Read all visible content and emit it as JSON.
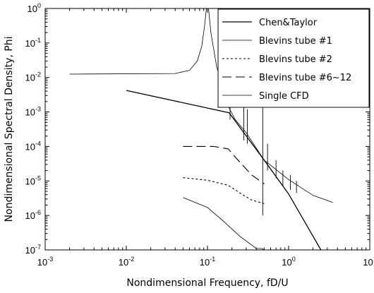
{
  "chart_data": {
    "type": "line",
    "xlabel": "Nondimensional Frequency,  fD/U",
    "ylabel": "Nondimensional Spectral Density, Phi",
    "xscale": "log",
    "yscale": "log",
    "xlim": [
      0.001,
      10
    ],
    "ylim": [
      1e-07,
      1
    ],
    "grid": false,
    "legend_position": "top-right",
    "x_ticks": [
      {
        "base": "10",
        "exp": "-3"
      },
      {
        "base": "10",
        "exp": "-2"
      },
      {
        "base": "10",
        "exp": "-1"
      },
      {
        "base": "10",
        "exp": "0"
      },
      {
        "base": "10",
        "exp": "1"
      }
    ],
    "y_ticks": [
      {
        "base": "10",
        "exp": "-7"
      },
      {
        "base": "10",
        "exp": "-6"
      },
      {
        "base": "10",
        "exp": "-5"
      },
      {
        "base": "10",
        "exp": "-4"
      },
      {
        "base": "10",
        "exp": "-3"
      },
      {
        "base": "10",
        "exp": "-2"
      },
      {
        "base": "10",
        "exp": "-1"
      },
      {
        "base": "10",
        "exp": "0"
      }
    ],
    "series": [
      {
        "name": "Chen&Taylor",
        "style": "solid",
        "color": "#000000",
        "width": 1.3,
        "points": [
          [
            0.01,
            0.0042
          ],
          [
            0.185,
            0.00095
          ],
          [
            0.5,
            4e-05
          ],
          [
            1.0,
            4.2e-06
          ],
          [
            2.5,
            1e-07
          ]
        ]
      },
      {
        "name": "Blevins tube #1",
        "style": "solid",
        "color": "#000000",
        "width": 0.8,
        "points": [
          [
            0.002,
            0.0125
          ],
          [
            0.04,
            0.013
          ],
          [
            0.06,
            0.016
          ],
          [
            0.075,
            0.03
          ],
          [
            0.085,
            0.08
          ],
          [
            0.092,
            0.3
          ],
          [
            0.097,
            1.0
          ]
        ]
      },
      {
        "name": "Blevins tube #1",
        "style": "solid",
        "color": "#000000",
        "width": 0.8,
        "points": [
          [
            0.103,
            1.0
          ],
          [
            0.11,
            0.2
          ],
          [
            0.13,
            0.02
          ],
          [
            0.16,
            0.0045
          ],
          [
            0.185,
            0.0013
          ],
          [
            0.22,
            0.0006
          ],
          [
            0.3,
            0.00025
          ],
          [
            0.5,
            4e-05
          ],
          [
            1.0,
            1.1e-05
          ],
          [
            2.0,
            3.8e-06
          ],
          [
            3.5,
            2.4e-06
          ]
        ]
      },
      {
        "name": "Blevins tube #2",
        "style": "dotted",
        "color": "#000000",
        "width": 1.1,
        "points": [
          [
            0.05,
            1.25e-05
          ],
          [
            0.1,
            1.05e-05
          ],
          [
            0.18,
            7.5e-06
          ],
          [
            0.25,
            4.5e-06
          ],
          [
            0.35,
            2.8e-06
          ],
          [
            0.5,
            2.2e-06
          ]
        ]
      },
      {
        "name": "Blevins tube #6~12",
        "style": "dashed",
        "color": "#000000",
        "width": 1.1,
        "points": [
          [
            0.05,
            0.0001
          ],
          [
            0.12,
            0.0001
          ],
          [
            0.18,
            8.5e-05
          ],
          [
            0.25,
            3.5e-05
          ],
          [
            0.35,
            1.5e-05
          ],
          [
            0.5,
            8.2e-06
          ]
        ]
      },
      {
        "name": "Single CFD",
        "style": "solid",
        "color": "#000000",
        "width": 0.8,
        "points": [
          [
            0.05,
            3.3e-06
          ],
          [
            0.1,
            1.7e-06
          ],
          [
            0.15,
            7.5e-07
          ],
          [
            0.25,
            2.5e-07
          ],
          [
            0.4,
            1.1e-07
          ],
          [
            0.47,
            1.1e-07
          ],
          [
            0.5,
            1e-07
          ]
        ]
      }
    ],
    "spikes": [
      {
        "x": 0.19,
        "y1": 0.0006,
        "y2": 0.002
      },
      {
        "x": 0.28,
        "y1": 0.00015,
        "y2": 0.0035
      },
      {
        "x": 0.31,
        "y1": 0.00012,
        "y2": 0.0012
      },
      {
        "x": 0.48,
        "y1": 1e-06,
        "y2": 0.002
      },
      {
        "x": 0.55,
        "y1": 2e-05,
        "y2": 0.00012
      },
      {
        "x": 0.7,
        "y1": 1.2e-05,
        "y2": 4e-05
      },
      {
        "x": 0.85,
        "y1": 7e-06,
        "y2": 2e-05
      },
      {
        "x": 1.05,
        "y1": 5.5e-06,
        "y2": 1.5e-05
      },
      {
        "x": 1.25,
        "y1": 4.5e-06,
        "y2": 1e-05
      }
    ],
    "legend": [
      {
        "label": "Chen&Taylor",
        "style": "solid",
        "width": 1.3
      },
      {
        "label": "Blevins tube #1",
        "style": "solid",
        "width": 0.8
      },
      {
        "label": "Blevins tube #2",
        "style": "dotted",
        "width": 1.1
      },
      {
        "label": "Blevins tube #6~12",
        "style": "dashed",
        "width": 1.1
      },
      {
        "label": "Single CFD",
        "style": "solid",
        "width": 0.8
      }
    ]
  }
}
